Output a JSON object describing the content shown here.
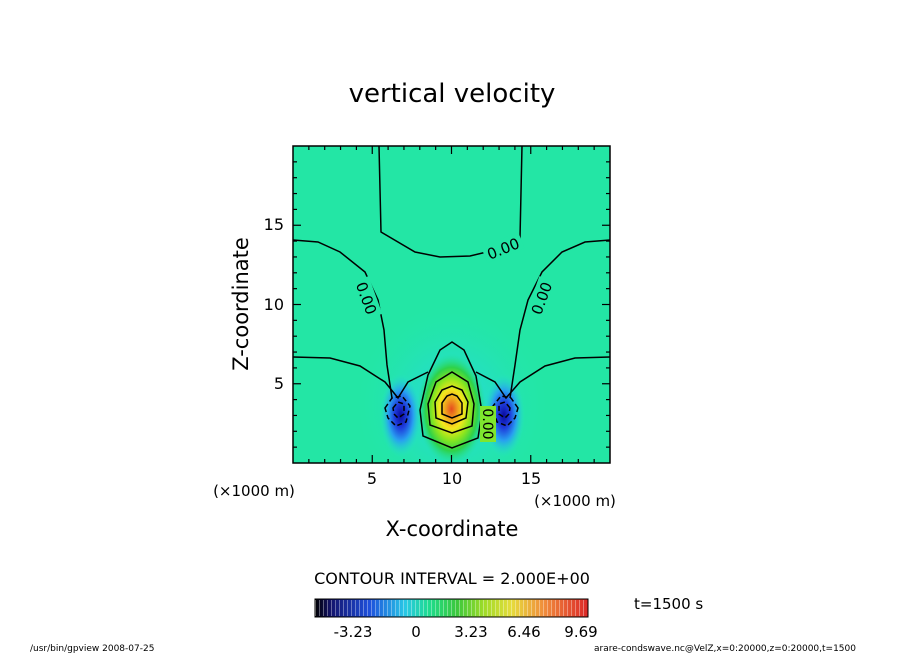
{
  "chart_data": {
    "type": "contour",
    "title": "vertical velocity",
    "xlabel": "X-coordinate",
    "ylabel": "Z-coordinate",
    "x_unit": "(×1000 m)",
    "y_unit": "(×1000 m)",
    "xlim": [
      0,
      20
    ],
    "ylim": [
      0,
      20
    ],
    "x_ticks": [
      "5",
      "10",
      "15"
    ],
    "y_ticks": [
      "5",
      "10",
      "15"
    ],
    "contour_interval_label": "CONTOUR INTERVAL = 2.000E+00",
    "contour_labels": [
      "0.00",
      "0.00",
      "0.00",
      "0.00"
    ],
    "colorbar": {
      "tick_labels": [
        "-3.23",
        "0",
        "3.23",
        "6.46",
        "9.69"
      ],
      "min": -6.46,
      "max": 11.0
    },
    "fields": [
      {
        "name": "updraft",
        "center": [
          10,
          3.4
        ],
        "sigma": [
          1.0,
          1.6
        ],
        "amplitude": 10.5
      },
      {
        "name": "left-downdraft",
        "center": [
          6.8,
          3.0
        ],
        "sigma": [
          0.6,
          1.2
        ],
        "amplitude": -6.0
      },
      {
        "name": "right-downdraft",
        "center": [
          13.3,
          3.0
        ],
        "sigma": [
          0.6,
          1.2
        ],
        "amplitude": -6.0
      }
    ]
  },
  "time_label": "t=1500 s",
  "footer": {
    "left": "/usr/bin/gpview   2008-07-25",
    "right": "arare-condswave.nc@VelZ,x=0:20000,z=0:20000,t=1500"
  }
}
